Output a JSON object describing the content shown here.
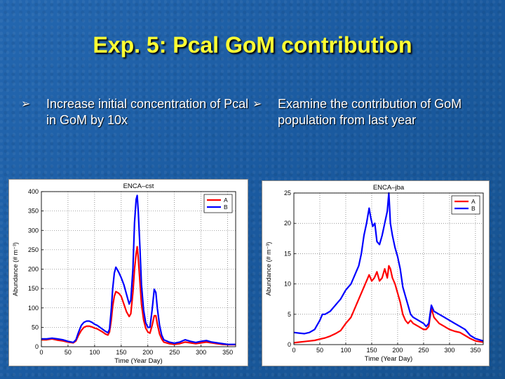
{
  "slide": {
    "title": "Exp. 5: Pcal  GoM contribution",
    "bullet_marker": "➢",
    "bullets": [
      "Increase initial concentration of Pcal in GoM by 10x",
      "Examine the contribution of GoM population from last year"
    ]
  },
  "chart_data": [
    {
      "type": "line",
      "title": "ENCA–cst",
      "xlabel": "Time (Year Day)",
      "ylabel": "Abundance (# m⁻³)",
      "xlim": [
        0,
        365
      ],
      "ylim": [
        0,
        400
      ],
      "xticks": [
        0,
        50,
        100,
        150,
        200,
        250,
        300,
        350
      ],
      "yticks": [
        0,
        50,
        100,
        150,
        200,
        250,
        300,
        350,
        400
      ],
      "grid": true,
      "legend_position": "top-right",
      "series": [
        {
          "name": "A",
          "color": "#ff0000",
          "x": [
            0,
            10,
            20,
            30,
            40,
            50,
            60,
            65,
            70,
            75,
            80,
            85,
            90,
            95,
            100,
            105,
            110,
            115,
            120,
            125,
            128,
            131,
            134,
            137,
            140,
            143,
            146,
            150,
            155,
            160,
            165,
            168,
            172,
            175,
            178,
            180,
            182,
            185,
            188,
            192,
            196,
            200,
            204,
            208,
            212,
            215,
            218,
            222,
            226,
            230,
            240,
            250,
            260,
            270,
            280,
            290,
            300,
            310,
            320,
            330,
            340,
            350,
            360,
            365
          ],
          "y": [
            18,
            18,
            20,
            17,
            15,
            12,
            10,
            15,
            30,
            42,
            50,
            53,
            53,
            51,
            48,
            46,
            42,
            38,
            33,
            30,
            38,
            65,
            105,
            130,
            142,
            140,
            137,
            130,
            110,
            90,
            78,
            85,
            140,
            200,
            240,
            258,
            230,
            170,
            110,
            70,
            48,
            38,
            35,
            55,
            80,
            80,
            58,
            33,
            20,
            12,
            8,
            6,
            8,
            12,
            10,
            8,
            10,
            12,
            10,
            8,
            6,
            5,
            5,
            5
          ]
        },
        {
          "name": "B",
          "color": "#0000ff",
          "x": [
            0,
            10,
            20,
            30,
            40,
            50,
            60,
            65,
            70,
            75,
            80,
            85,
            90,
            95,
            100,
            105,
            110,
            115,
            120,
            125,
            128,
            131,
            134,
            137,
            140,
            143,
            146,
            150,
            155,
            160,
            165,
            168,
            172,
            175,
            178,
            180,
            182,
            185,
            188,
            192,
            196,
            200,
            204,
            208,
            212,
            215,
            218,
            222,
            226,
            230,
            240,
            250,
            260,
            270,
            280,
            290,
            300,
            310,
            320,
            330,
            340,
            350,
            360,
            365
          ],
          "y": [
            20,
            20,
            22,
            20,
            18,
            14,
            11,
            18,
            38,
            55,
            63,
            66,
            66,
            63,
            58,
            55,
            50,
            45,
            40,
            36,
            45,
            90,
            150,
            190,
            205,
            198,
            190,
            178,
            160,
            135,
            110,
            120,
            200,
            320,
            380,
            390,
            350,
            260,
            160,
            95,
            62,
            50,
            50,
            95,
            148,
            140,
            98,
            55,
            30,
            18,
            12,
            9,
            12,
            18,
            14,
            11,
            14,
            16,
            12,
            10,
            8,
            6,
            6,
            6
          ]
        }
      ]
    },
    {
      "type": "line",
      "title": "ENCA–jba",
      "xlabel": "Time (Year Day)",
      "ylabel": "Abundance (# m⁻³)",
      "xlim": [
        0,
        365
      ],
      "ylim": [
        0,
        25
      ],
      "xticks": [
        0,
        50,
        100,
        150,
        200,
        250,
        300,
        350
      ],
      "yticks": [
        0,
        5,
        10,
        15,
        20,
        25
      ],
      "grid": true,
      "legend_position": "top-right",
      "series": [
        {
          "name": "A",
          "color": "#ff0000",
          "x": [
            0,
            10,
            20,
            30,
            40,
            50,
            60,
            70,
            80,
            90,
            100,
            110,
            115,
            120,
            125,
            130,
            135,
            140,
            145,
            150,
            155,
            160,
            165,
            170,
            175,
            180,
            183,
            186,
            190,
            195,
            200,
            205,
            210,
            215,
            220,
            225,
            230,
            240,
            250,
            255,
            260,
            265,
            270,
            280,
            290,
            300,
            310,
            320,
            330,
            340,
            350,
            365
          ],
          "y": [
            0.3,
            0.4,
            0.5,
            0.6,
            0.7,
            0.9,
            1.1,
            1.4,
            1.8,
            2.3,
            3.5,
            4.5,
            5.5,
            6.5,
            7.5,
            8.5,
            9.5,
            10.5,
            11.5,
            10.5,
            11,
            12,
            10.5,
            11,
            12.5,
            11,
            13,
            12.5,
            11,
            10,
            8.5,
            7,
            5,
            4,
            3.5,
            4,
            3.5,
            3,
            2.5,
            2.5,
            3,
            6,
            4.5,
            3.5,
            3,
            2.5,
            2.2,
            2,
            1.5,
            1,
            0.6,
            0.4
          ]
        },
        {
          "name": "B",
          "color": "#0000ff",
          "x": [
            0,
            10,
            20,
            30,
            40,
            50,
            55,
            60,
            70,
            80,
            90,
            100,
            110,
            115,
            120,
            125,
            130,
            135,
            140,
            145,
            148,
            152,
            156,
            160,
            165,
            170,
            175,
            180,
            183,
            186,
            190,
            195,
            200,
            205,
            210,
            215,
            220,
            225,
            230,
            240,
            250,
            255,
            260,
            265,
            270,
            280,
            290,
            300,
            310,
            320,
            330,
            340,
            350,
            365
          ],
          "y": [
            2,
            1.9,
            1.8,
            2,
            2.5,
            4,
            5,
            5,
            5.5,
            6.5,
            7.5,
            9,
            10,
            11,
            12,
            13,
            15,
            18,
            20,
            22.5,
            21,
            19.5,
            20,
            17,
            16.5,
            18,
            20,
            22,
            25,
            20,
            18,
            16,
            14.5,
            12.5,
            9.5,
            8,
            6.5,
            5,
            4.5,
            4,
            3.5,
            3,
            3.5,
            6.5,
            5.5,
            5,
            4.5,
            4,
            3.5,
            3,
            2.5,
            1.5,
            1,
            0.6
          ]
        }
      ]
    }
  ]
}
